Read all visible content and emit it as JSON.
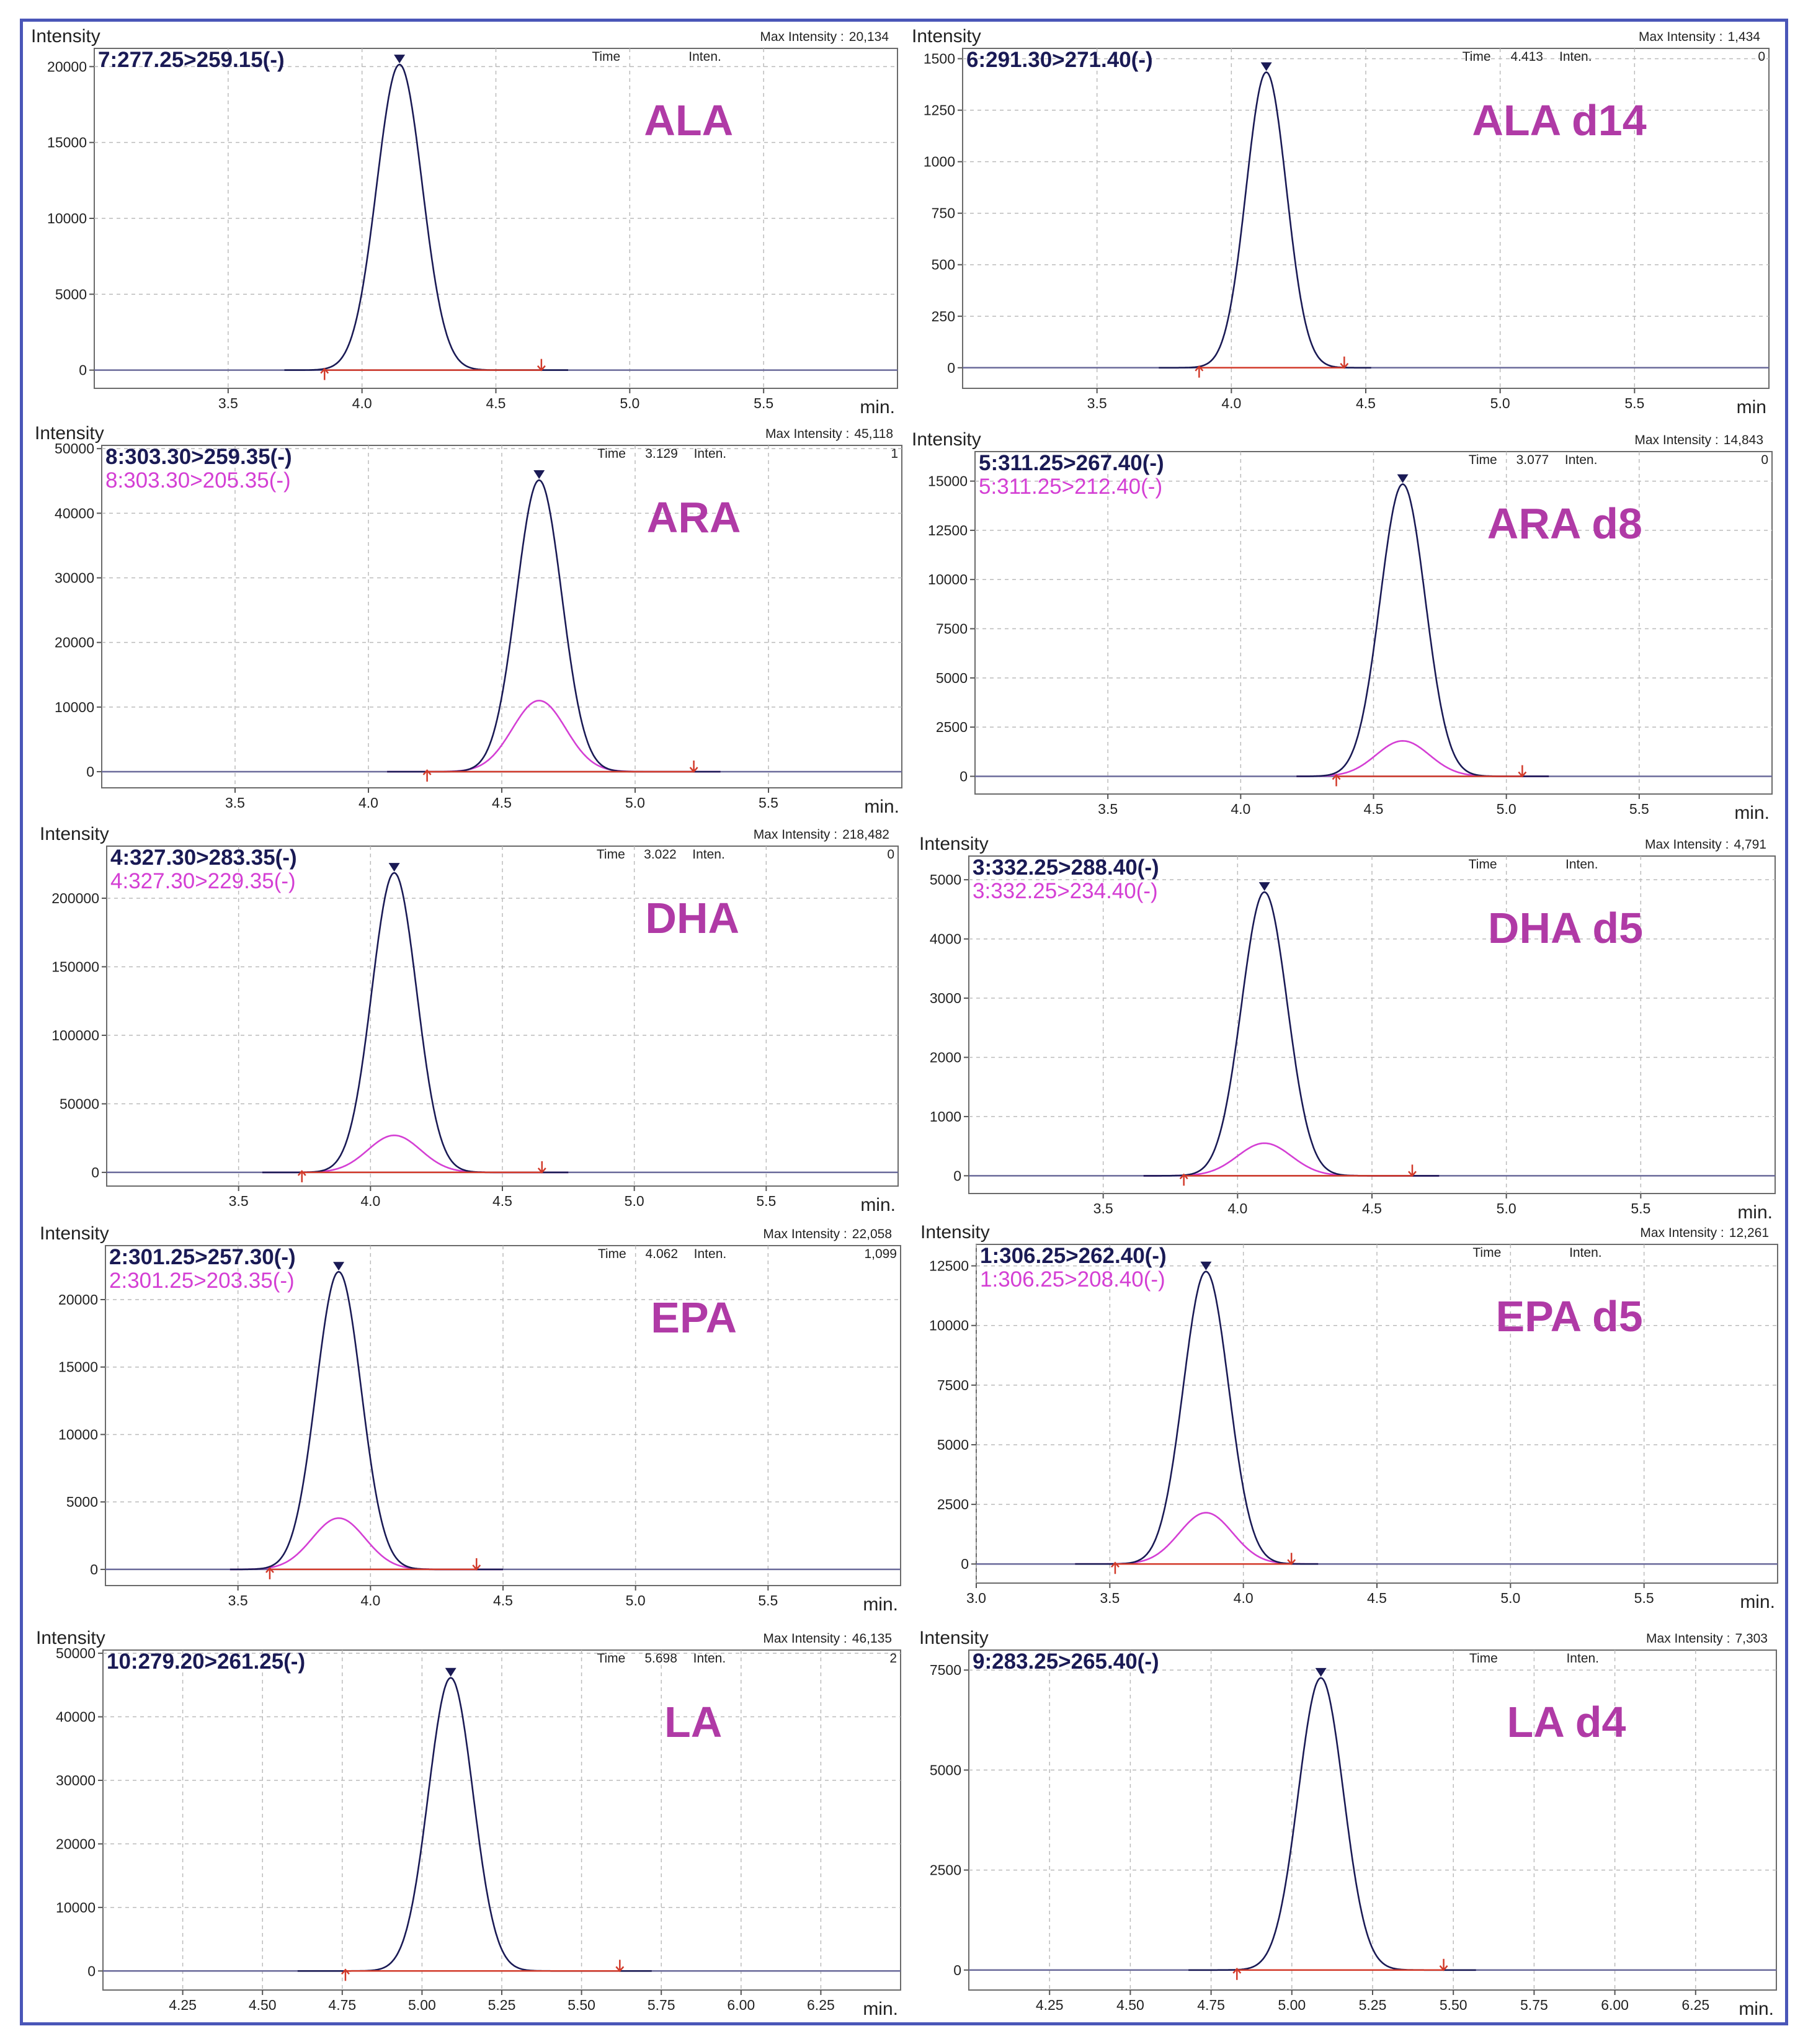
{
  "chart_data": [
    {
      "type": "line",
      "panel": "ALA",
      "ylabel": "Intensity",
      "xlabel": "min.",
      "max_intensity_label": "Max Intensity :",
      "max_intensity": "20,134",
      "time_label": "Time",
      "time_value": "",
      "inten_label": "Inten.",
      "inten_value": "",
      "xlim": [
        3.0,
        6.0
      ],
      "ylim": [
        -1200,
        21200
      ],
      "xticks": [
        3.5,
        4.0,
        4.5,
        5.0,
        5.5
      ],
      "xtick_labels": [
        "3.5",
        "4.0",
        "4.5",
        "5.0",
        "5.5"
      ],
      "yticks": [
        0,
        5000,
        10000,
        15000,
        20000
      ],
      "ytick_labels": [
        "0",
        "5000",
        "10000",
        "15000",
        "20000"
      ],
      "integration": {
        "start": 3.86,
        "end": 4.67
      },
      "series": [
        {
          "name": "7:277.25>259.15(-)",
          "color": "#1a1a55",
          "peak_time": 4.14,
          "peak_height": 20134,
          "width": 0.085
        }
      ],
      "compound_label": "ALA"
    },
    {
      "type": "line",
      "panel": "ALA d14",
      "ylabel": "Intensity",
      "xlabel": "min",
      "max_intensity_label": "Max Intensity :",
      "max_intensity": "1,434",
      "time_label": "Time",
      "time_value": "4.413",
      "inten_label": "Inten.",
      "inten_value": "0",
      "xlim": [
        3.0,
        6.0
      ],
      "ylim": [
        -100,
        1550
      ],
      "xticks": [
        3.5,
        4.0,
        4.5,
        5.0,
        5.5
      ],
      "xtick_labels": [
        "3.5",
        "4.0",
        "4.5",
        "5.0",
        "5.5"
      ],
      "yticks": [
        0,
        250,
        500,
        750,
        1000,
        1250,
        1500
      ],
      "ytick_labels": [
        "0",
        "250",
        "500",
        "750",
        "1000",
        "1250",
        "1500"
      ],
      "integration": {
        "start": 3.88,
        "end": 4.42
      },
      "series": [
        {
          "name": "6:291.30>271.40(-)",
          "color": "#1a1a55",
          "peak_time": 4.13,
          "peak_height": 1434,
          "width": 0.075
        }
      ],
      "compound_label": "ALA d14"
    },
    {
      "type": "line",
      "panel": "ARA",
      "ylabel": "Intensity",
      "xlabel": "min.",
      "max_intensity_label": "Max Intensity :",
      "max_intensity": "45,118",
      "time_label": "Time",
      "time_value": "3.129",
      "inten_label": "Inten.",
      "inten_value": "1",
      "xlim": [
        3.0,
        6.0
      ],
      "ylim": [
        -2500,
        50500
      ],
      "xticks": [
        3.5,
        4.0,
        4.5,
        5.0,
        5.5
      ],
      "xtick_labels": [
        "3.5",
        "4.0",
        "4.5",
        "5.0",
        "5.5"
      ],
      "yticks": [
        0,
        10000,
        20000,
        30000,
        40000,
        50000
      ],
      "ytick_labels": [
        "0",
        "10000",
        "20000",
        "30000",
        "40000",
        "50000"
      ],
      "integration": {
        "start": 4.22,
        "end": 5.22
      },
      "series": [
        {
          "name": "8:303.30>259.35(-)",
          "color": "#1a1a55",
          "peak_time": 4.64,
          "peak_height": 45118,
          "width": 0.085
        },
        {
          "name": "8:303.30>205.35(-)",
          "color": "#d43fd4",
          "peak_time": 4.64,
          "peak_height": 11000,
          "width": 0.1
        }
      ],
      "compound_label": "ARA"
    },
    {
      "type": "line",
      "panel": "ARA d8",
      "ylabel": "Intensity",
      "xlabel": "min.",
      "max_intensity_label": "Max Intensity :",
      "max_intensity": "14,843",
      "time_label": "Time",
      "time_value": "3.077",
      "inten_label": "Inten.",
      "inten_value": "0",
      "xlim": [
        3.0,
        6.0
      ],
      "ylim": [
        -900,
        16500
      ],
      "xticks": [
        3.5,
        4.0,
        4.5,
        5.0,
        5.5
      ],
      "xtick_labels": [
        "3.5",
        "4.0",
        "4.5",
        "5.0",
        "5.5"
      ],
      "yticks": [
        0,
        2500,
        5000,
        7500,
        10000,
        12500,
        15000
      ],
      "ytick_labels": [
        "0",
        "2500",
        "5000",
        "7500",
        "10000",
        "12500",
        "15000"
      ],
      "integration": {
        "start": 4.36,
        "end": 5.06
      },
      "series": [
        {
          "name": "5:311.25>267.40(-)",
          "color": "#1a1a55",
          "peak_time": 4.61,
          "peak_height": 14843,
          "width": 0.085
        },
        {
          "name": "5:311.25>212.40(-)",
          "color": "#d43fd4",
          "peak_time": 4.61,
          "peak_height": 1800,
          "width": 0.1
        }
      ],
      "compound_label": "ARA d8"
    },
    {
      "type": "line",
      "panel": "DHA",
      "ylabel": "Intensity",
      "xlabel": "min.",
      "max_intensity_label": "Max Intensity :",
      "max_intensity": "218,482",
      "time_label": "Time",
      "time_value": "3.022",
      "inten_label": "Inten.",
      "inten_value": "0",
      "xlim": [
        3.0,
        6.0
      ],
      "ylim": [
        -10000,
        238000
      ],
      "xticks": [
        3.5,
        4.0,
        4.5,
        5.0,
        5.5
      ],
      "xtick_labels": [
        "3.5",
        "4.0",
        "4.5",
        "5.0",
        "5.5"
      ],
      "yticks": [
        0,
        50000,
        100000,
        150000,
        200000
      ],
      "ytick_labels": [
        "0",
        "50000",
        "100000",
        "150000",
        "200000"
      ],
      "integration": {
        "start": 3.74,
        "end": 4.65
      },
      "series": [
        {
          "name": "4:327.30>283.35(-)",
          "color": "#1a1a55",
          "peak_time": 4.09,
          "peak_height": 218482,
          "width": 0.085
        },
        {
          "name": "4:327.30>229.35(-)",
          "color": "#d43fd4",
          "peak_time": 4.09,
          "peak_height": 27000,
          "width": 0.1
        }
      ],
      "compound_label": "DHA"
    },
    {
      "type": "line",
      "panel": "DHA d5",
      "ylabel": "Intensity",
      "xlabel": "min.",
      "max_intensity_label": "Max Intensity :",
      "max_intensity": "4,791",
      "time_label": "Time",
      "time_value": "",
      "inten_label": "Inten.",
      "inten_value": "",
      "xlim": [
        3.0,
        6.0
      ],
      "ylim": [
        -300,
        5400
      ],
      "xticks": [
        3.5,
        4.0,
        4.5,
        5.0,
        5.5
      ],
      "xtick_labels": [
        "3.5",
        "4.0",
        "4.5",
        "5.0",
        "5.5"
      ],
      "yticks": [
        0,
        1000,
        2000,
        3000,
        4000,
        5000
      ],
      "ytick_labels": [
        "0",
        "1000",
        "2000",
        "3000",
        "4000",
        "5000"
      ],
      "integration": {
        "start": 3.8,
        "end": 4.65
      },
      "series": [
        {
          "name": "3:332.25>288.40(-)",
          "color": "#1a1a55",
          "peak_time": 4.1,
          "peak_height": 4791,
          "width": 0.085
        },
        {
          "name": "3:332.25>234.40(-)",
          "color": "#d43fd4",
          "peak_time": 4.1,
          "peak_height": 550,
          "width": 0.1
        }
      ],
      "compound_label": "DHA d5"
    },
    {
      "type": "line",
      "panel": "EPA",
      "ylabel": "Intensity",
      "xlabel": "min.",
      "max_intensity_label": "Max Intensity :",
      "max_intensity": "22,058",
      "time_label": "Time",
      "time_value": "4.062",
      "inten_label": "Inten.",
      "inten_value": "1,099",
      "xlim": [
        3.0,
        6.0
      ],
      "ylim": [
        -1200,
        24000
      ],
      "xticks": [
        3.5,
        4.0,
        4.5,
        5.0,
        5.5
      ],
      "xtick_labels": [
        "3.5",
        "4.0",
        "4.5",
        "5.0",
        "5.5"
      ],
      "yticks": [
        0,
        5000,
        10000,
        15000,
        20000
      ],
      "ytick_labels": [
        "0",
        "5000",
        "10000",
        "15000",
        "20000"
      ],
      "integration": {
        "start": 3.62,
        "end": 4.4
      },
      "series": [
        {
          "name": "2:301.25>257.30(-)",
          "color": "#1a1a55",
          "peak_time": 3.88,
          "peak_height": 22058,
          "width": 0.085
        },
        {
          "name": "2:301.25>203.35(-)",
          "color": "#d43fd4",
          "peak_time": 3.88,
          "peak_height": 3800,
          "width": 0.1
        }
      ],
      "compound_label": "EPA"
    },
    {
      "type": "line",
      "panel": "EPA d5",
      "ylabel": "Intensity",
      "xlabel": "min.",
      "max_intensity_label": "Max Intensity :",
      "max_intensity": "12,261",
      "time_label": "Time",
      "time_value": "",
      "inten_label": "Inten.",
      "inten_value": "",
      "xlim": [
        3.0,
        6.0
      ],
      "ylim": [
        -800,
        13400
      ],
      "xticks": [
        3.0,
        3.5,
        4.0,
        4.5,
        5.0,
        5.5
      ],
      "xtick_labels": [
        "3.0",
        "3.5",
        "4.0",
        "4.5",
        "5.0",
        "5.5"
      ],
      "yticks": [
        0,
        2500,
        5000,
        7500,
        10000,
        12500
      ],
      "ytick_labels": [
        "0",
        "2500",
        "5000",
        "7500",
        "10000",
        "12500"
      ],
      "integration": {
        "start": 3.52,
        "end": 4.18
      },
      "series": [
        {
          "name": "1:306.25>262.40(-)",
          "color": "#1a1a55",
          "peak_time": 3.86,
          "peak_height": 12261,
          "width": 0.085
        },
        {
          "name": "1:306.25>208.40(-)",
          "color": "#d43fd4",
          "peak_time": 3.86,
          "peak_height": 2150,
          "width": 0.1
        }
      ],
      "compound_label": "EPA d5"
    },
    {
      "type": "line",
      "panel": "LA",
      "ylabel": "Intensity",
      "xlabel": "min.",
      "max_intensity_label": "Max Intensity :",
      "max_intensity": "46,135",
      "time_label": "Time",
      "time_value": "5.698",
      "inten_label": "Inten.",
      "inten_value": "2",
      "xlim": [
        4.0,
        6.5
      ],
      "ylim": [
        -3000,
        50500
      ],
      "xticks": [
        4.25,
        4.5,
        4.75,
        5.0,
        5.25,
        5.5,
        5.75,
        6.0,
        6.25
      ],
      "xtick_labels": [
        "4.25",
        "4.50",
        "4.75",
        "5.00",
        "5.25",
        "5.50",
        "5.75",
        "6.00",
        "6.25"
      ],
      "yticks": [
        0,
        10000,
        20000,
        30000,
        40000,
        50000
      ],
      "ytick_labels": [
        "0",
        "10000",
        "20000",
        "30000",
        "40000",
        "50000"
      ],
      "integration": {
        "start": 4.76,
        "end": 5.62
      },
      "series": [
        {
          "name": "10:279.20>261.25(-)",
          "color": "#1a1a55",
          "peak_time": 5.09,
          "peak_height": 46135,
          "width": 0.07
        }
      ],
      "compound_label": "LA"
    },
    {
      "type": "line",
      "panel": "LA d4",
      "ylabel": "Intensity",
      "xlabel": "min.",
      "max_intensity_label": "Max Intensity :",
      "max_intensity": "7,303",
      "time_label": "Time",
      "time_value": "",
      "inten_label": "Inten.",
      "inten_value": "",
      "xlim": [
        4.0,
        6.5
      ],
      "ylim": [
        -500,
        8000
      ],
      "xticks": [
        4.25,
        4.5,
        4.75,
        5.0,
        5.25,
        5.5,
        5.75,
        6.0,
        6.25
      ],
      "xtick_labels": [
        "4.25",
        "4.50",
        "4.75",
        "5.00",
        "5.25",
        "5.50",
        "5.75",
        "6.00",
        "6.25"
      ],
      "yticks": [
        0,
        2500,
        5000,
        7500
      ],
      "ytick_labels": [
        "0",
        "2500",
        "5000",
        "7500"
      ],
      "integration": {
        "start": 4.83,
        "end": 5.47
      },
      "series": [
        {
          "name": "9:283.25>265.40(-)",
          "color": "#1a1a55",
          "peak_time": 5.09,
          "peak_height": 7303,
          "width": 0.07
        }
      ],
      "compound_label": "LA d4"
    }
  ],
  "colors": {
    "frame": "#4a56b8",
    "trace_primary": "#1a1a55",
    "trace_secondary": "#d43fd4",
    "compound_label": "#b03aa6",
    "integration_line": "#d23a2a",
    "grid": "#bbbbbb"
  }
}
